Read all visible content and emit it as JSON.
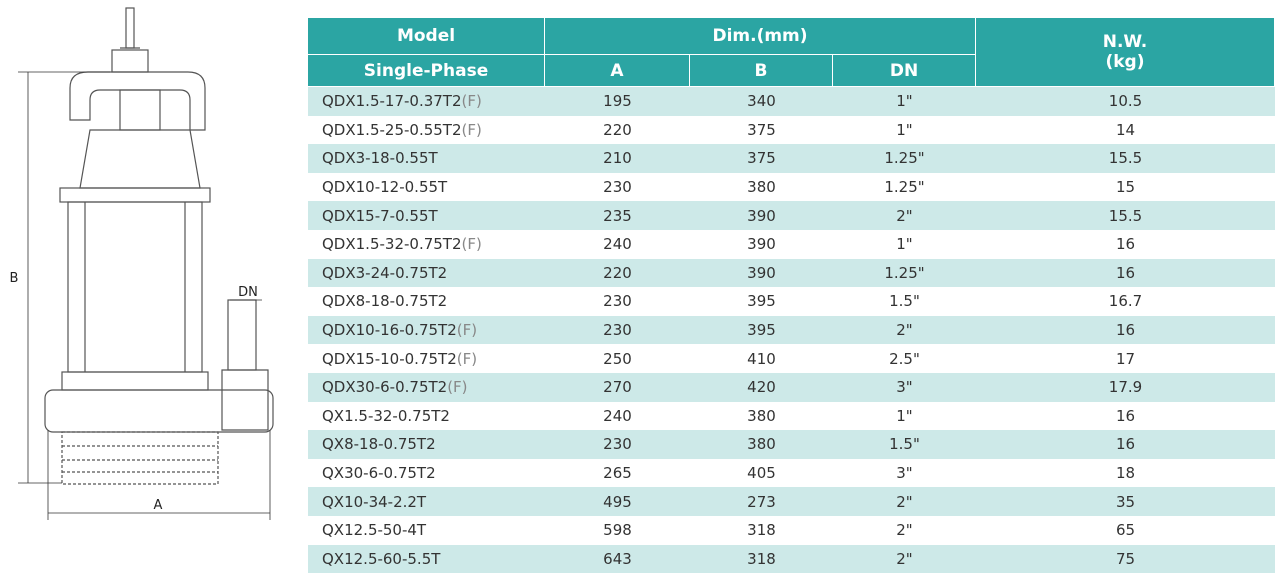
{
  "diagram": {
    "labels": {
      "b": "B",
      "a": "A",
      "dn": "DN"
    }
  },
  "table": {
    "header": {
      "model": "Model",
      "dim": "Dim.(mm)",
      "nw": "N.W.",
      "nw_unit": "(kg)",
      "phase": "Single-Phase",
      "a": "A",
      "b": "B",
      "dn": "DN"
    },
    "rows": [
      {
        "model": "QDX1.5-17-0.37T2",
        "suffix": "(F)",
        "a": 195,
        "b": 340,
        "dn": "1\"",
        "nw": 10.5
      },
      {
        "model": "QDX1.5-25-0.55T2",
        "suffix": "(F)",
        "a": 220,
        "b": 375,
        "dn": "1\"",
        "nw": 14
      },
      {
        "model": "QDX3-18-0.55T",
        "a": 210,
        "b": 375,
        "dn": "1.25\"",
        "nw": 15.5
      },
      {
        "model": "QDX10-12-0.55T",
        "a": 230,
        "b": 380,
        "dn": "1.25\"",
        "nw": 15
      },
      {
        "model": "QDX15-7-0.55T",
        "a": 235,
        "b": 390,
        "dn": "2\"",
        "nw": 15.5
      },
      {
        "model": "QDX1.5-32-0.75T2",
        "suffix": "(F)",
        "a": 240,
        "b": 390,
        "dn": "1\"",
        "nw": 16
      },
      {
        "model": "QDX3-24-0.75T2",
        "a": 220,
        "b": 390,
        "dn": "1.25\"",
        "nw": 16
      },
      {
        "model": "QDX8-18-0.75T2",
        "a": 230,
        "b": 395,
        "dn": "1.5\"",
        "nw": 16.7
      },
      {
        "model": "QDX10-16-0.75T2",
        "suffix": "(F)",
        "a": 230,
        "b": 395,
        "dn": "2\"",
        "nw": 16
      },
      {
        "model": "QDX15-10-0.75T2",
        "suffix": "(F)",
        "a": 250,
        "b": 410,
        "dn": "2.5\"",
        "nw": 17
      },
      {
        "model": "QDX30-6-0.75T2",
        "suffix": "(F)",
        "a": 270,
        "b": 420,
        "dn": "3\"",
        "nw": 17.9
      },
      {
        "model": "QX1.5-32-0.75T2",
        "a": 240,
        "b": 380,
        "dn": "1\"",
        "nw": 16
      },
      {
        "model": "QX8-18-0.75T2",
        "a": 230,
        "b": 380,
        "dn": "1.5\"",
        "nw": 16
      },
      {
        "model": "QX30-6-0.75T2",
        "a": 265,
        "b": 405,
        "dn": "3\"",
        "nw": 18
      },
      {
        "model": "QX10-34-2.2T",
        "a": 495,
        "b": 273,
        "dn": "2\"",
        "nw": 35
      },
      {
        "model": "QX12.5-50-4T",
        "a": 598,
        "b": 318,
        "dn": "2\"",
        "nw": 65
      },
      {
        "model": "QX12.5-60-5.5T",
        "a": 643,
        "b": 318,
        "dn": "2\"",
        "nw": 75
      }
    ]
  }
}
